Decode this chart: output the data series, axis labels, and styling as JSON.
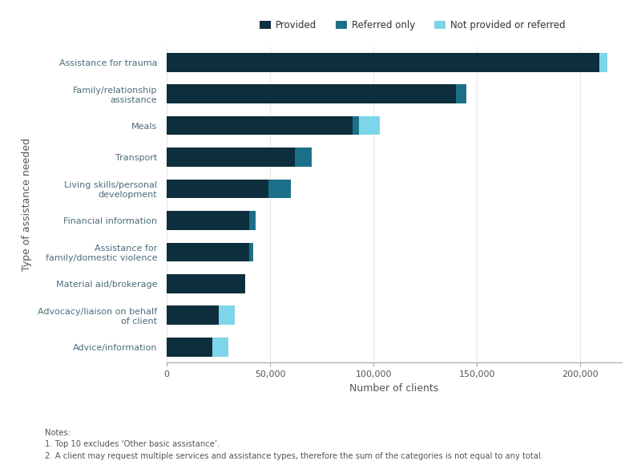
{
  "categories": [
    "Advice/information",
    "Advocacy/liaison on behalf\nof client",
    "Material aid/brokerage",
    "Assistance for\nfamily/domestic violence",
    "Financial information",
    "Living skills/personal\ndevelopment",
    "Transport",
    "Meals",
    "Family/relationship\nassistance",
    "Assistance for trauma"
  ],
  "provided": [
    209000,
    140000,
    90000,
    62000,
    49000,
    40000,
    40000,
    38000,
    25000,
    22000
  ],
  "referred_only": [
    0,
    5000,
    3000,
    8000,
    11000,
    3000,
    2000,
    0,
    0,
    0
  ],
  "not_provided_or_referred": [
    4000,
    0,
    10000,
    0,
    0,
    0,
    0,
    0,
    8000,
    8000
  ],
  "color_provided": "#0d2e3c",
  "color_referred": "#1c6f88",
  "color_not_provided": "#7dd5ea",
  "legend_labels": [
    "Provided",
    "Referred only",
    "Not provided or referred"
  ],
  "xlabel": "Number of clients",
  "ylabel": "Type of assistance needed",
  "xlim": [
    0,
    220000
  ],
  "xticks": [
    0,
    50000,
    100000,
    150000,
    200000
  ],
  "notes": [
    "Notes:",
    "1. Top 10 excludes ‘Other basic assistance’.",
    "2. A client may request multiple services and assistance types, therefore the sum of the categories is not equal to any total."
  ],
  "background_color": "#ffffff",
  "bar_height": 0.6
}
